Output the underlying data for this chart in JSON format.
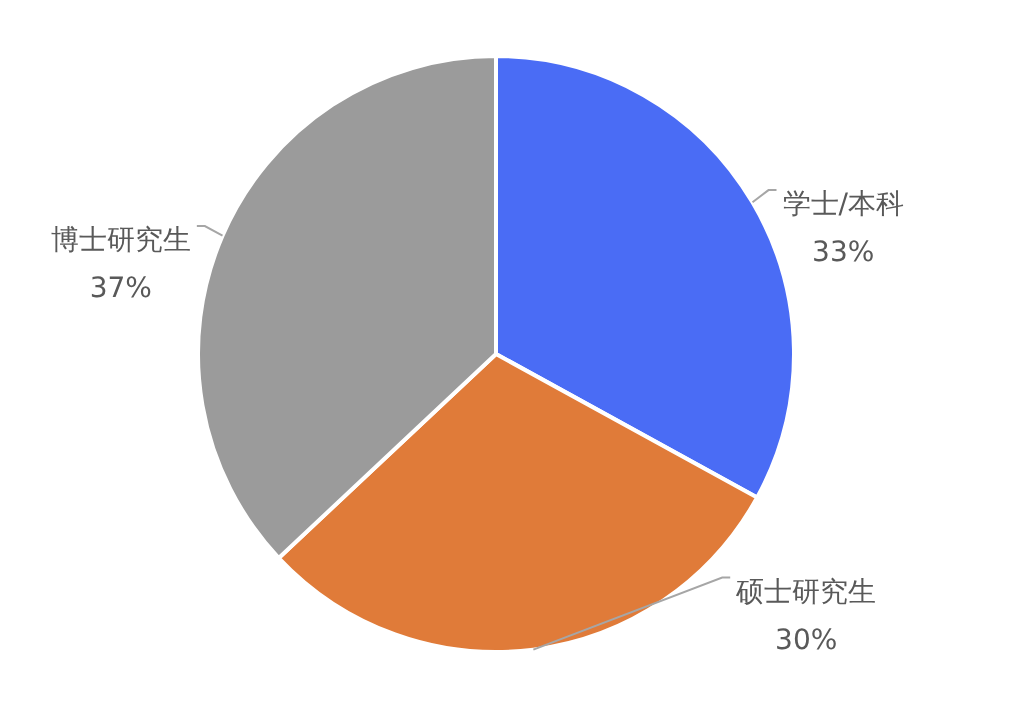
{
  "chart_data": {
    "type": "pie",
    "categories": [
      "学士/本科",
      "硕士研究生",
      "博士研究生"
    ],
    "values": [
      33,
      30,
      37
    ],
    "value_labels": [
      "33%",
      "30%",
      "37%"
    ],
    "colors": [
      "#4a6cf5",
      "#e07b39",
      "#9b9b9b"
    ],
    "legend": false
  }
}
